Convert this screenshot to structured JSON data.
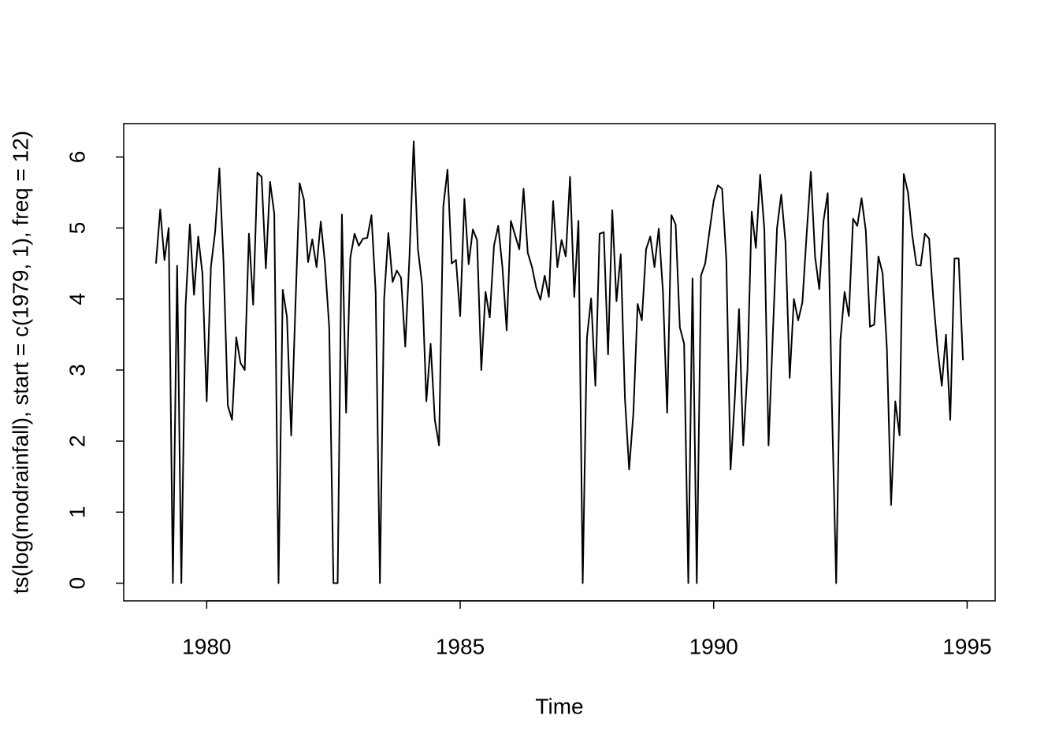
{
  "chart_data": {
    "type": "line",
    "x_label": "Time",
    "y_label": "ts(log(modrainfall), start = c(1979, 1), freq = 12)",
    "x": [
      1979.0,
      1979.083,
      1979.167,
      1979.25,
      1979.333,
      1979.417,
      1979.5,
      1979.583,
      1979.667,
      1979.75,
      1979.833,
      1979.917,
      1980.0,
      1980.083,
      1980.167,
      1980.25,
      1980.333,
      1980.417,
      1980.5,
      1980.583,
      1980.667,
      1980.75,
      1980.833,
      1980.917,
      1981.0,
      1981.083,
      1981.167,
      1981.25,
      1981.333,
      1981.417,
      1981.5,
      1981.583,
      1981.667,
      1981.75,
      1981.833,
      1981.917,
      1982.0,
      1982.083,
      1982.167,
      1982.25,
      1982.333,
      1982.417,
      1982.5,
      1982.583,
      1982.667,
      1982.75,
      1982.833,
      1982.917,
      1983.0,
      1983.083,
      1983.167,
      1983.25,
      1983.333,
      1983.417,
      1983.5,
      1983.583,
      1983.667,
      1983.75,
      1983.833,
      1983.917,
      1984.0,
      1984.083,
      1984.167,
      1984.25,
      1984.333,
      1984.417,
      1984.5,
      1984.583,
      1984.667,
      1984.75,
      1984.833,
      1984.917,
      1985.0,
      1985.083,
      1985.167,
      1985.25,
      1985.333,
      1985.417,
      1985.5,
      1985.583,
      1985.667,
      1985.75,
      1985.833,
      1985.917,
      1986.0,
      1986.083,
      1986.167,
      1986.25,
      1986.333,
      1986.417,
      1986.5,
      1986.583,
      1986.667,
      1986.75,
      1986.833,
      1986.917,
      1987.0,
      1987.083,
      1987.167,
      1987.25,
      1987.333,
      1987.417,
      1987.5,
      1987.583,
      1987.667,
      1987.75,
      1987.833,
      1987.917,
      1988.0,
      1988.083,
      1988.167,
      1988.25,
      1988.333,
      1988.417,
      1988.5,
      1988.583,
      1988.667,
      1988.75,
      1988.833,
      1988.917,
      1989.0,
      1989.083,
      1989.167,
      1989.25,
      1989.333,
      1989.417,
      1989.5,
      1989.583,
      1989.667,
      1989.75,
      1989.833,
      1989.917,
      1990.0,
      1990.083,
      1990.167,
      1990.25,
      1990.333,
      1990.417,
      1990.5,
      1990.583,
      1990.667,
      1990.75,
      1990.833,
      1990.917,
      1991.0,
      1991.083,
      1991.167,
      1991.25,
      1991.333,
      1991.417,
      1991.5,
      1991.583,
      1991.667,
      1991.75,
      1991.833,
      1991.917,
      1992.0,
      1992.083,
      1992.167,
      1992.25,
      1992.333,
      1992.417,
      1992.5,
      1992.583,
      1992.667,
      1992.75,
      1992.833,
      1992.917,
      1993.0,
      1993.083,
      1993.167,
      1993.25,
      1993.333,
      1993.417,
      1993.5,
      1993.583,
      1993.667,
      1993.75,
      1993.833,
      1993.917,
      1994.0,
      1994.083,
      1994.167,
      1994.25,
      1994.333,
      1994.417,
      1994.5,
      1994.583,
      1994.667,
      1994.75,
      1994.833,
      1994.917
    ],
    "series": [
      {
        "color": "#000000",
        "values": [
          4.5,
          5.26,
          4.55,
          5.0,
          0,
          4.47,
          0,
          3.9,
          5.05,
          4.06,
          4.88,
          4.35,
          2.56,
          4.45,
          4.95,
          5.84,
          4.5,
          2.5,
          2.3,
          3.46,
          3.1,
          3.0,
          4.92,
          3.92,
          5.78,
          5.72,
          4.43,
          5.65,
          5.2,
          0,
          4.13,
          3.75,
          2.08,
          3.9,
          5.63,
          5.4,
          4.52,
          4.84,
          4.45,
          5.09,
          4.5,
          3.6,
          0,
          0,
          5.19,
          2.4,
          4.58,
          4.92,
          4.75,
          4.85,
          4.86,
          5.18,
          4.1,
          0,
          4.0,
          4.93,
          4.24,
          4.4,
          4.3,
          3.33,
          4.6,
          6.22,
          4.7,
          4.2,
          2.56,
          3.37,
          2.3,
          1.94,
          5.3,
          5.82,
          4.5,
          4.55,
          3.76,
          5.41,
          4.49,
          4.98,
          4.83,
          3.0,
          4.1,
          3.74,
          4.75,
          5.03,
          4.45,
          3.56,
          5.1,
          4.9,
          4.7,
          5.55,
          4.65,
          4.45,
          4.16,
          3.99,
          4.33,
          4.03,
          5.38,
          4.45,
          4.83,
          4.6,
          5.72,
          4.03,
          5.1,
          0,
          3.45,
          4.01,
          2.78,
          4.92,
          4.94,
          3.22,
          5.25,
          3.97,
          4.63,
          2.6,
          1.6,
          2.4,
          3.93,
          3.7,
          4.7,
          4.88,
          4.45,
          4.99,
          4.1,
          2.4,
          5.18,
          5.05,
          3.6,
          3.37,
          0,
          4.29,
          0,
          4.33,
          4.5,
          4.95,
          5.38,
          5.6,
          5.55,
          4.55,
          1.6,
          2.6,
          3.86,
          1.94,
          3.0,
          5.23,
          4.72,
          5.75,
          4.98,
          1.94,
          3.5,
          5.0,
          5.47,
          4.8,
          2.89,
          4.0,
          3.7,
          3.95,
          4.9,
          5.79,
          4.6,
          4.14,
          5.1,
          5.49,
          2.5,
          0,
          3.42,
          4.1,
          3.76,
          5.13,
          5.03,
          5.42,
          4.97,
          3.61,
          3.64,
          4.6,
          4.36,
          3.3,
          1.1,
          2.56,
          2.08,
          5.76,
          5.5,
          4.9,
          4.48,
          4.47,
          4.92,
          4.85,
          4.0,
          3.3,
          2.78,
          3.5,
          2.3,
          4.57,
          4.57,
          3.14
        ]
      }
    ],
    "xlim": [
      1978.363,
      1995.553
    ],
    "xticks": [
      1980,
      1985,
      1990,
      1995
    ],
    "ylim": [
      -0.249,
      6.469
    ],
    "yticks": [
      0,
      1,
      2,
      3,
      4,
      5,
      6
    ]
  }
}
